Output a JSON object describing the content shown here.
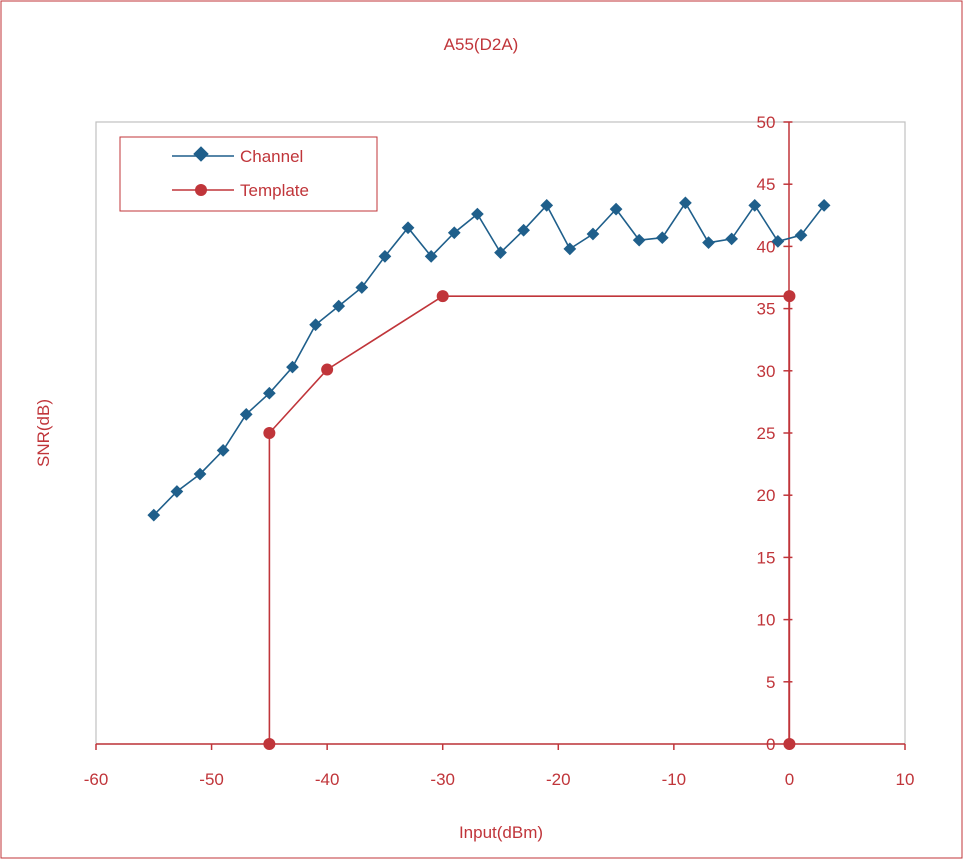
{
  "chart_data": {
    "type": "line",
    "title": "A55(D2A)",
    "xlabel": "Input(dBm)",
    "ylabel": "SNR(dB)",
    "xlim": [
      -60,
      10
    ],
    "ylim": [
      0,
      50
    ],
    "x_ticks": [
      -60,
      -50,
      -40,
      -30,
      -20,
      -10,
      0,
      10
    ],
    "y_ticks": [
      0,
      5,
      10,
      15,
      20,
      25,
      30,
      35,
      40,
      45,
      50
    ],
    "grid": false,
    "legend_position": "top-left",
    "series": [
      {
        "name": "Channel",
        "color": "#1f5f8b",
        "marker": "diamond",
        "points": [
          [
            -55,
            18.4
          ],
          [
            -53,
            20.3
          ],
          [
            -51,
            21.7
          ],
          [
            -49,
            23.6
          ],
          [
            -47,
            26.5
          ],
          [
            -45,
            28.2
          ],
          [
            -43,
            30.3
          ],
          [
            -41,
            33.7
          ],
          [
            -39,
            35.2
          ],
          [
            -37,
            36.7
          ],
          [
            -35,
            39.2
          ],
          [
            -33,
            41.5
          ],
          [
            -31,
            39.2
          ],
          [
            -29,
            41.1
          ],
          [
            -27,
            42.6
          ],
          [
            -25,
            39.5
          ],
          [
            -23,
            41.3
          ],
          [
            -21,
            43.3
          ],
          [
            -19,
            39.8
          ],
          [
            -17,
            41.0
          ],
          [
            -15,
            43.0
          ],
          [
            -13,
            40.5
          ],
          [
            -11,
            40.7
          ],
          [
            -9,
            43.5
          ],
          [
            -7,
            40.3
          ],
          [
            -5,
            40.6
          ],
          [
            -3,
            43.3
          ],
          [
            -1,
            40.4
          ],
          [
            1,
            40.9
          ],
          [
            3,
            43.3
          ]
        ]
      },
      {
        "name": "Template",
        "color": "#c0353a",
        "marker": "circle",
        "points": [
          [
            -45,
            0
          ],
          [
            -45,
            25
          ],
          [
            -40,
            30.1
          ],
          [
            -30,
            36
          ],
          [
            0,
            36
          ],
          [
            0,
            0
          ]
        ]
      }
    ]
  }
}
